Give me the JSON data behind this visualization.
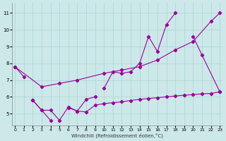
{
  "background_color": "#cce8e8",
  "grid_color": "#aad4d4",
  "line_color": "#990099",
  "xlabel": "Windchill (Refroidissement éolien,°C)",
  "xlim": [
    -0.3,
    23.3
  ],
  "ylim": [
    4.3,
    11.6
  ],
  "ytick_vals": [
    5,
    6,
    7,
    8,
    9,
    10,
    11
  ],
  "xtick_vals": [
    0,
    1,
    2,
    3,
    4,
    5,
    6,
    7,
    8,
    9,
    10,
    11,
    12,
    13,
    14,
    15,
    16,
    17,
    18,
    19,
    20,
    21,
    22,
    23
  ],
  "lines": [
    {
      "x": [
        0,
        1,
        2,
        3,
        4,
        5,
        10,
        11,
        12,
        13,
        14,
        15,
        16,
        17,
        18,
        19,
        20,
        21,
        23
      ],
      "y": [
        7.8,
        7.2,
        null,
        null,
        null,
        null,
        6.5,
        7.5,
        7.4,
        7.5,
        8.0,
        9.6,
        8.7,
        10.3,
        11.0,
        null,
        9.6,
        8.5,
        6.3
      ]
    },
    {
      "x": [
        0,
        3,
        5,
        7,
        10,
        12,
        14,
        16,
        18,
        20,
        22,
        23
      ],
      "y": [
        7.8,
        6.6,
        6.8,
        7.0,
        7.4,
        7.6,
        7.8,
        8.2,
        8.8,
        9.3,
        10.5,
        11.0
      ]
    },
    {
      "x": [
        2,
        3,
        4,
        5,
        6,
        7,
        8,
        9
      ],
      "y": [
        5.8,
        5.2,
        4.6,
        null,
        5.35,
        5.15,
        5.85,
        6.0
      ]
    },
    {
      "x": [
        2,
        3,
        4,
        5,
        6,
        7,
        8,
        9,
        10,
        11,
        12,
        13,
        14,
        15,
        16,
        17,
        18,
        19,
        20,
        21,
        22,
        23
      ],
      "y": [
        5.8,
        5.2,
        5.2,
        4.6,
        5.4,
        5.15,
        5.1,
        5.5,
        5.6,
        5.65,
        5.7,
        5.78,
        5.85,
        5.9,
        5.95,
        6.0,
        6.05,
        6.1,
        6.13,
        6.18,
        6.2,
        6.3
      ]
    }
  ]
}
